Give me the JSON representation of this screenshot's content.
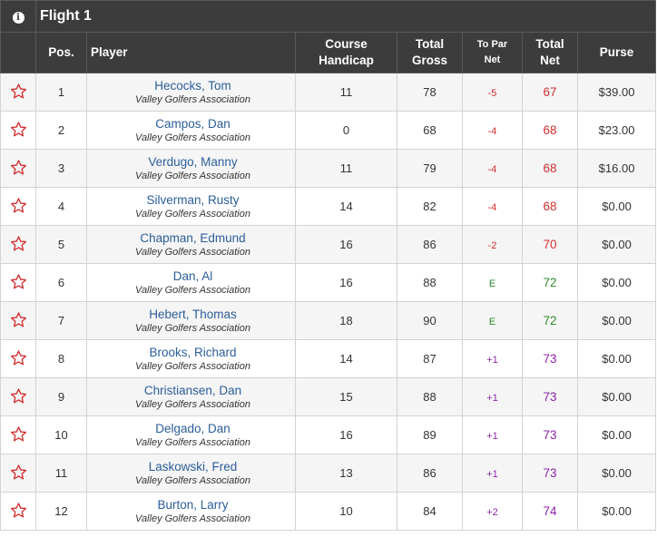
{
  "flight": {
    "title": "Flight 1",
    "info_icon": "info-icon"
  },
  "columns": {
    "pos": "Pos.",
    "player": "Player",
    "handicap_line1": "Course",
    "handicap_line2": "Handicap",
    "gross_line1": "Total",
    "gross_line2": "Gross",
    "topar_line1": "To Par",
    "topar_line2": "Net",
    "net_line1": "Total",
    "net_line2": "Net",
    "purse": "Purse"
  },
  "colors": {
    "header_bg": "#3c3c3c",
    "link": "#2b5d9a",
    "under_par": "#d32f2f",
    "even_par": "#2e8b2e",
    "over_par": "#8e24aa",
    "star": "#d32f2f"
  },
  "rows": [
    {
      "pos": "1",
      "name": "Hecocks, Tom",
      "assoc": "Valley Golfers Association",
      "handicap": "11",
      "gross": "78",
      "topar": "-5",
      "net": "67",
      "purse": "$39.00",
      "tone": "red"
    },
    {
      "pos": "2",
      "name": "Campos, Dan",
      "assoc": "Valley Golfers Association",
      "handicap": "0",
      "gross": "68",
      "topar": "-4",
      "net": "68",
      "purse": "$23.00",
      "tone": "red"
    },
    {
      "pos": "3",
      "name": "Verdugo, Manny",
      "assoc": "Valley Golfers Association",
      "handicap": "11",
      "gross": "79",
      "topar": "-4",
      "net": "68",
      "purse": "$16.00",
      "tone": "red"
    },
    {
      "pos": "4",
      "name": "Silverman, Rusty",
      "assoc": "Valley Golfers Association",
      "handicap": "14",
      "gross": "82",
      "topar": "-4",
      "net": "68",
      "purse": "$0.00",
      "tone": "red"
    },
    {
      "pos": "5",
      "name": "Chapman, Edmund",
      "assoc": "Valley Golfers Association",
      "handicap": "16",
      "gross": "86",
      "topar": "-2",
      "net": "70",
      "purse": "$0.00",
      "tone": "red"
    },
    {
      "pos": "6",
      "name": "Dan, Al",
      "assoc": "Valley Golfers Association",
      "handicap": "16",
      "gross": "88",
      "topar": "E",
      "net": "72",
      "purse": "$0.00",
      "tone": "green"
    },
    {
      "pos": "7",
      "name": "Hebert, Thomas",
      "assoc": "Valley Golfers Association",
      "handicap": "18",
      "gross": "90",
      "topar": "E",
      "net": "72",
      "purse": "$0.00",
      "tone": "green"
    },
    {
      "pos": "8",
      "name": "Brooks, Richard",
      "assoc": "Valley Golfers Association",
      "handicap": "14",
      "gross": "87",
      "topar": "+1",
      "net": "73",
      "purse": "$0.00",
      "tone": "purple"
    },
    {
      "pos": "9",
      "name": "Christiansen, Dan",
      "assoc": "Valley Golfers Association",
      "handicap": "15",
      "gross": "88",
      "topar": "+1",
      "net": "73",
      "purse": "$0.00",
      "tone": "purple"
    },
    {
      "pos": "10",
      "name": "Delgado, Dan",
      "assoc": "Valley Golfers Association",
      "handicap": "16",
      "gross": "89",
      "topar": "+1",
      "net": "73",
      "purse": "$0.00",
      "tone": "purple"
    },
    {
      "pos": "11",
      "name": "Laskowski, Fred",
      "assoc": "Valley Golfers Association",
      "handicap": "13",
      "gross": "86",
      "topar": "+1",
      "net": "73",
      "purse": "$0.00",
      "tone": "purple"
    },
    {
      "pos": "12",
      "name": "Burton, Larry",
      "assoc": "Valley Golfers Association",
      "handicap": "10",
      "gross": "84",
      "topar": "+2",
      "net": "74",
      "purse": "$0.00",
      "tone": "purple"
    }
  ]
}
